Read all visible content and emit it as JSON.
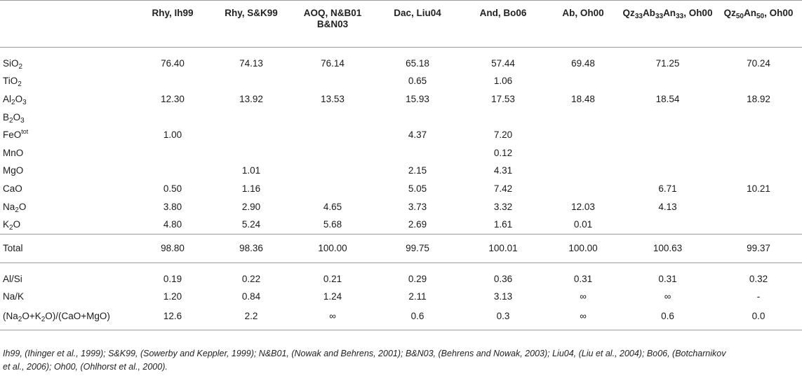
{
  "columns": [
    {
      "text": "Rhy, Ih99"
    },
    {
      "text": "Rhy, S&K99"
    },
    {
      "text": "AOQ, N&B01 B&N03"
    },
    {
      "text": "Dac, Liu04"
    },
    {
      "text": "And, Bo06"
    },
    {
      "text": "Ab, Oh00"
    },
    {
      "text": "Qz",
      "s1": "33",
      "t2": "Ab",
      "s2": "33",
      "t3": "An",
      "s3": "33",
      "t4": ", Oh00"
    },
    {
      "text": "Qz",
      "s1": "50",
      "t2": "An",
      "s2": "50",
      "t4": ", Oh00"
    }
  ],
  "oxides": [
    {
      "label": "SiO",
      "sub": "2",
      "values": [
        "76.40",
        "74.13",
        "76.14",
        "65.18",
        "57.44",
        "69.48",
        "71.25",
        "70.24"
      ]
    },
    {
      "label": "TiO",
      "sub": "2",
      "values": [
        "",
        "",
        "",
        "0.65",
        "1.06",
        "",
        "",
        ""
      ]
    },
    {
      "label": "Al",
      "sub": "2",
      "label2": "O",
      "sub2": "3",
      "values": [
        "12.30",
        "13.92",
        "13.53",
        "15.93",
        "17.53",
        "18.48",
        "18.54",
        "18.92"
      ]
    },
    {
      "label": "B",
      "sub": "2",
      "label2": "O",
      "sub2": "3",
      "values": [
        "",
        "",
        "",
        "",
        "",
        "",
        "",
        ""
      ]
    },
    {
      "label": "FeO",
      "sup": "tot",
      "values": [
        "1.00",
        "",
        "",
        "4.37",
        "7.20",
        "",
        "",
        ""
      ]
    },
    {
      "label": "MnO",
      "values": [
        "",
        "",
        "",
        "",
        "0.12",
        "",
        "",
        ""
      ]
    },
    {
      "label": "MgO",
      "values": [
        "",
        "1.01",
        "",
        "2.15",
        "4.31",
        "",
        "",
        ""
      ]
    },
    {
      "label": "CaO",
      "values": [
        "0.50",
        "1.16",
        "",
        "5.05",
        "7.42",
        "",
        "6.71",
        "10.21"
      ]
    },
    {
      "label": "Na",
      "sub": "2",
      "label2": "O",
      "values": [
        "3.80",
        "2.90",
        "4.65",
        "3.73",
        "3.32",
        "12.03",
        "4.13",
        ""
      ]
    },
    {
      "label": "K",
      "sub": "2",
      "label2": "O",
      "values": [
        "4.80",
        "5.24",
        "5.68",
        "2.69",
        "1.61",
        "0.01",
        "",
        ""
      ]
    }
  ],
  "total": {
    "label": "Total",
    "values": [
      "98.80",
      "98.36",
      "100.00",
      "99.75",
      "100.01",
      "100.00",
      "100.63",
      "99.37"
    ]
  },
  "ratios": [
    {
      "label": "Al/Si",
      "values": [
        "0.19",
        "0.22",
        "0.21",
        "0.29",
        "0.36",
        "0.31",
        "0.31",
        "0.32"
      ]
    },
    {
      "label": "Na/K",
      "values": [
        "1.20",
        "0.84",
        "1.24",
        "2.11",
        "3.13",
        "∞",
        "∞",
        "-"
      ]
    },
    {
      "label": "(Na",
      "sub": "2",
      "label2": "O+K",
      "sub2": "2",
      "label3": "O)/(CaO+MgO)",
      "values": [
        "12.6",
        "2.2",
        "∞",
        "0.6",
        "0.3",
        "∞",
        "0.6",
        "0.0"
      ]
    }
  ],
  "footnote": [
    "Ih99, (Ihinger et al., 1999); S&K99, (Sowerby and Keppler, 1999); N&B01, (Nowak and Behrens, 2001); B&N03, (Behrens and Nowak, 2003); Liu04, (Liu et al., 2004); Bo06, (Botcharnikov",
    "et al., 2006); Oh00, (Ohlhorst et al., 2000)."
  ]
}
